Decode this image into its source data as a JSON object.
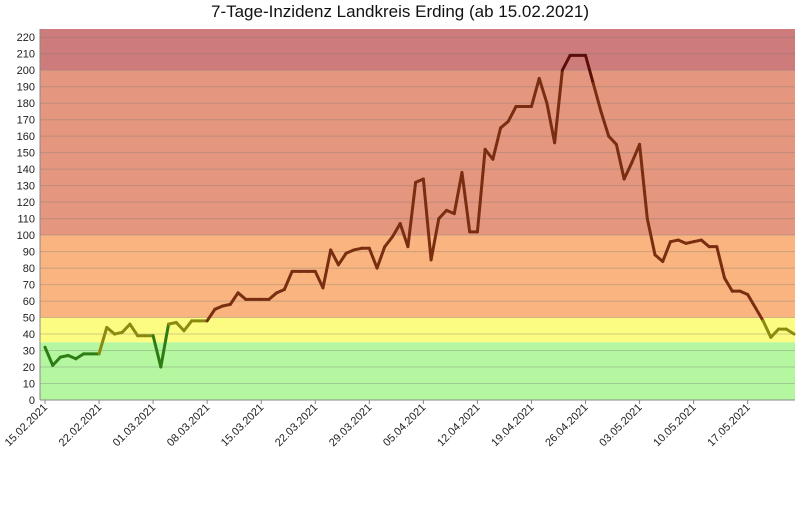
{
  "chart_data": {
    "type": "line",
    "title": "7-Tage-Inzidenz Landkreis Erding (ab 15.02.2021)",
    "xlabel": "",
    "ylabel": "",
    "ylim": [
      0,
      225
    ],
    "y_ticks": [
      0,
      10,
      20,
      30,
      40,
      50,
      60,
      70,
      80,
      90,
      100,
      110,
      120,
      130,
      140,
      150,
      160,
      170,
      180,
      190,
      200,
      210,
      220
    ],
    "x_tick_labels": [
      "15.02.2021",
      "22.02.2021",
      "01.03.2021",
      "08.03.2021",
      "15.03.2021",
      "22.03.2021",
      "29.03.2021",
      "05.04.2021",
      "12.04.2021",
      "19.04.2021",
      "26.04.2021",
      "03.05.2021",
      "10.05.2021",
      "17.05.2021"
    ],
    "grid": true,
    "legend": "none",
    "bands": [
      {
        "from": 0,
        "to": 35,
        "color": "#b4f7a0"
      },
      {
        "from": 35,
        "to": 50,
        "color": "#fcfc82"
      },
      {
        "from": 50,
        "to": 100,
        "color": "#f9b47f"
      },
      {
        "from": 100,
        "to": 200,
        "color": "#e4967e"
      },
      {
        "from": 200,
        "to": 225,
        "color": "#cd7b7b"
      }
    ],
    "line_colors": {
      "low": "#2d7d14",
      "mid": "#8a8a10",
      "high": "#7a2d10",
      "top": "#5a1008"
    },
    "series": [
      {
        "values": [
          32,
          21,
          26,
          27,
          25,
          28,
          28,
          28,
          44,
          40,
          41,
          46,
          39,
          39,
          39,
          20,
          46,
          47,
          42,
          48,
          48,
          48,
          55,
          57,
          58,
          65,
          61,
          61,
          61,
          61,
          65,
          67,
          78,
          78,
          78,
          78,
          68,
          91,
          82,
          89,
          91,
          92,
          92,
          80,
          93,
          99,
          107,
          93,
          132,
          134,
          85,
          110,
          115,
          113,
          138,
          102,
          102,
          152,
          146,
          165,
          169,
          178,
          178,
          178,
          195,
          180,
          156,
          200,
          209,
          209,
          209,
          192,
          175,
          160,
          155,
          134,
          144,
          155,
          110,
          88,
          84,
          96,
          97,
          95,
          96,
          97,
          93,
          93,
          74,
          66,
          66,
          64,
          56,
          48,
          38,
          43,
          43,
          40
        ]
      }
    ]
  }
}
